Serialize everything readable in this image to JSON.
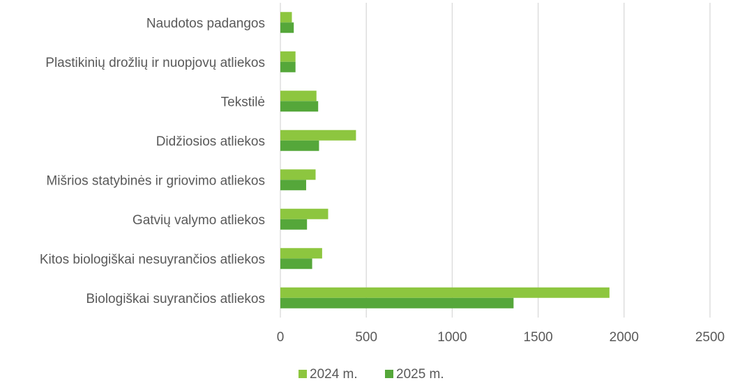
{
  "chart_data": {
    "type": "bar",
    "orientation": "horizontal",
    "categories": [
      "Biologiškai suyrančios atliekos",
      "Kitos biologiškai nesuyrančios atliekos",
      "Gatvių valymo atliekos",
      "Mišrios statybinės ir griovimo atliekos",
      "Didžiosios atliekos",
      "Tekstilė",
      "Plastikinių drožlių ir nuopjovų atliekos",
      "Naudotos padangos"
    ],
    "series": [
      {
        "name": "2024 m.",
        "color": "#8DC63F",
        "values": [
          1915,
          243,
          278,
          205,
          440,
          210,
          88,
          67
        ]
      },
      {
        "name": "2025 m.",
        "color": "#55A73A",
        "values": [
          1357,
          185,
          155,
          150,
          225,
          220,
          88,
          78
        ]
      }
    ],
    "xlim": [
      0,
      2500
    ],
    "xticks": [
      "0",
      "500",
      "1000",
      "1500",
      "2000",
      "2500"
    ],
    "grid": true,
    "legend_position": "bottom",
    "title": "",
    "xlabel": "",
    "ylabel": ""
  }
}
